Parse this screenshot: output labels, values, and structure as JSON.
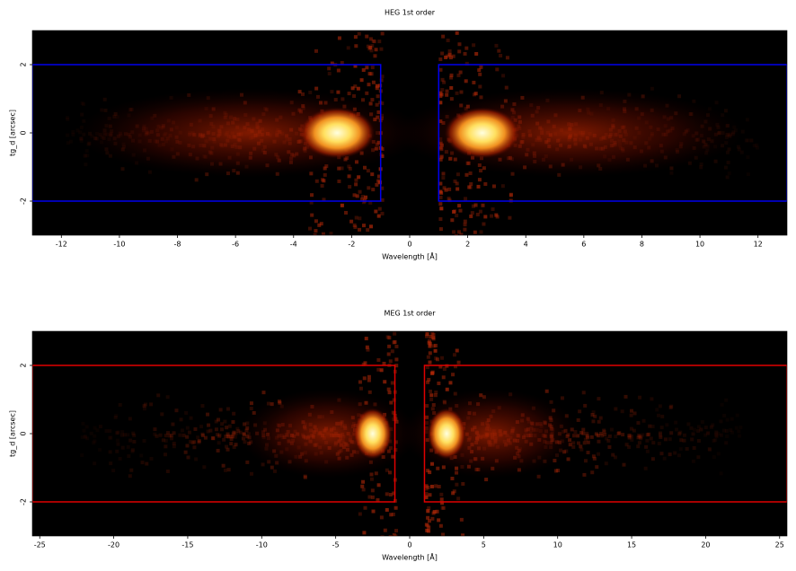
{
  "chart_data": [
    {
      "type": "heatmap",
      "title": "HEG 1st order",
      "x_label": "Wavelength [Å]",
      "y_label": "tg_d [arcsec]",
      "xlim": [
        -13,
        13
      ],
      "ylim": [
        -3,
        3
      ],
      "xticks": [
        -12,
        -10,
        -8,
        -6,
        -4,
        -2,
        0,
        2,
        4,
        6,
        8,
        10,
        12
      ],
      "yticks": [
        -2,
        0,
        2
      ],
      "region_color": "#0000ee",
      "regions": [
        {
          "x": [
            -13,
            -1
          ],
          "y": [
            -2,
            2
          ]
        },
        {
          "x": [
            1,
            13
          ],
          "y": [
            -2,
            2
          ]
        }
      ]
    },
    {
      "type": "heatmap",
      "title": "MEG 1st order",
      "x_label": "Wavelength [Å]",
      "y_label": "tg_d [arcsec]",
      "xlim": [
        -25.5,
        25.5
      ],
      "ylim": [
        -3,
        3
      ],
      "xticks": [
        -25,
        -20,
        -15,
        -10,
        -5,
        0,
        5,
        10,
        15,
        20,
        25
      ],
      "yticks": [
        -2,
        0,
        2
      ],
      "region_color": "#e00000",
      "regions": [
        {
          "x": [
            -25.5,
            -1
          ],
          "y": [
            -2,
            2
          ]
        },
        {
          "x": [
            1,
            25.5
          ],
          "y": [
            -2,
            2
          ]
        }
      ]
    }
  ]
}
